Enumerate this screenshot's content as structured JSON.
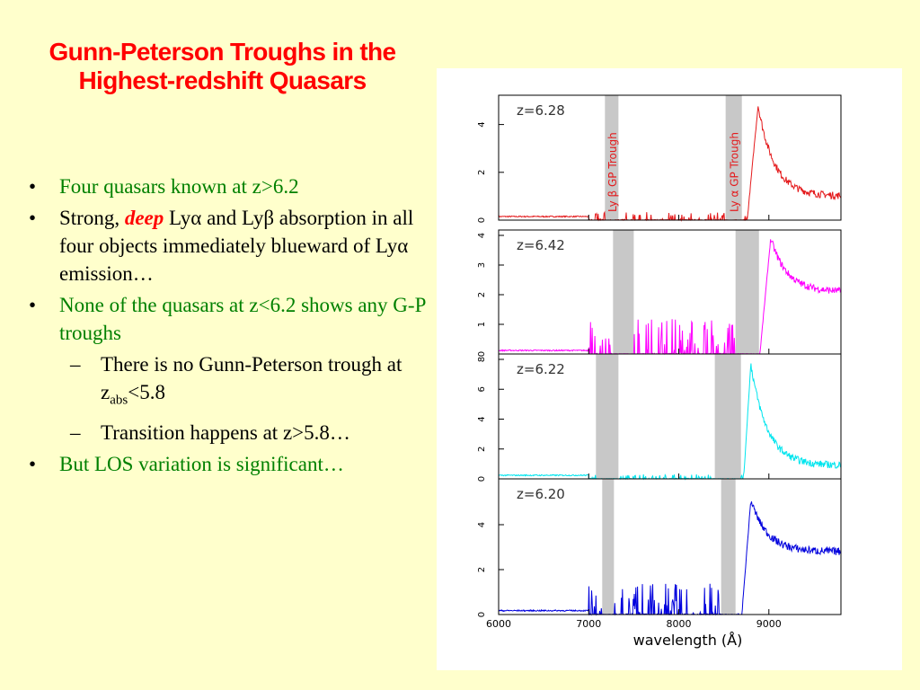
{
  "slide": {
    "title_line1": "Gunn-Peterson Troughs in the",
    "title_line2": "Highest-redshift Quasars",
    "bullets": {
      "b1": "Four quasars known at z>6.2",
      "b2_pre": "Strong, ",
      "b2_em": "deep",
      "b2_post": " Lyα and Lyβ absorption in all four objects immediately blueward of Lyα emission…",
      "b3": "None of the quasars at z<6.2 shows any G-P troughs",
      "s1_pre": "There is no Gunn-Peterson trough at  z",
      "s1_sub": "abs",
      "s1_post": "<5.8",
      "s2": "Transition happens at z>5.8…",
      "b4": "But LOS variation is significant…"
    },
    "bullet_glyph": "•",
    "dash_glyph": "–"
  },
  "chart_data": {
    "type": "line",
    "xlabel": "wavelength (Å)",
    "x_ticks": [
      "6000",
      "7000",
      "8000",
      "9000"
    ],
    "xlim": [
      6000,
      9800
    ],
    "panels": [
      {
        "label": "z=6.28",
        "color": "#e41a1c",
        "ylim": [
          0,
          5
        ],
        "y_ticks": [
          "0",
          "2",
          "4"
        ],
        "troughs": [
          {
            "x0": 7180,
            "x1": 7330,
            "label": "Ly β GP Trough"
          },
          {
            "x0": 8520,
            "x1": 8700,
            "label": "Ly α GP Trough"
          }
        ],
        "profile": {
          "edge": 8760,
          "peak": 4.8,
          "peak_x": 8880,
          "tail": 1.0,
          "absorb": 0.35
        }
      },
      {
        "label": "z=6.42",
        "color": "#ff00ff",
        "ylim": [
          0,
          4
        ],
        "y_ticks": [
          "0",
          "1",
          "2",
          "3",
          "4"
        ],
        "troughs": [
          {
            "x0": 7270,
            "x1": 7500,
            "label": ""
          },
          {
            "x0": 8630,
            "x1": 8890,
            "label": ""
          }
        ],
        "profile": {
          "edge": 8900,
          "peak": 3.9,
          "peak_x": 9020,
          "tail": 2.1,
          "absorb": 1.2
        }
      },
      {
        "label": "z=6.22",
        "color": "#00e5ee",
        "ylim": [
          0,
          8
        ],
        "y_ticks": [
          "0",
          "2",
          "4",
          "6",
          "8"
        ],
        "troughs": [
          {
            "x0": 7080,
            "x1": 7330,
            "label": ""
          },
          {
            "x0": 8400,
            "x1": 8690,
            "label": ""
          }
        ],
        "profile": {
          "edge": 8720,
          "peak": 7.7,
          "peak_x": 8800,
          "tail": 0.9,
          "absorb": 0.3
        }
      },
      {
        "label": "z=6.20",
        "color": "#0000dd",
        "ylim": [
          0,
          5.8
        ],
        "y_ticks": [
          "0",
          "2",
          "4"
        ],
        "troughs": [
          {
            "x0": 7150,
            "x1": 7280,
            "label": ""
          },
          {
            "x0": 8470,
            "x1": 8630,
            "label": ""
          }
        ],
        "profile": {
          "edge": 8700,
          "peak": 5.1,
          "peak_x": 8800,
          "tail": 2.8,
          "absorb": 1.4
        }
      }
    ]
  }
}
